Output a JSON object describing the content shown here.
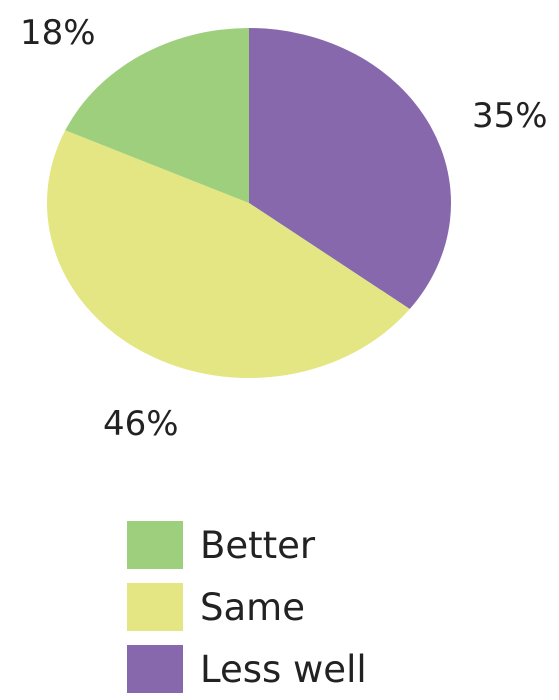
{
  "chart_data": {
    "type": "pie",
    "slices": [
      {
        "label": "Less well",
        "value": 35,
        "data_label": "35%",
        "color": "#8768ad"
      },
      {
        "label": "Same",
        "value": 46,
        "data_label": "46%",
        "color": "#e3e683"
      },
      {
        "label": "Better",
        "value": 18,
        "data_label": "18%",
        "color": "#9ecf7c"
      }
    ],
    "legend": {
      "placement": "bottom",
      "entries": [
        {
          "label": "Better",
          "color": "#9ecf7c"
        },
        {
          "label": "Same",
          "color": "#e3e683"
        },
        {
          "label": "Less well",
          "color": "#8768ad"
        }
      ]
    },
    "start_angle_deg": 0,
    "direction": "clockwise"
  }
}
